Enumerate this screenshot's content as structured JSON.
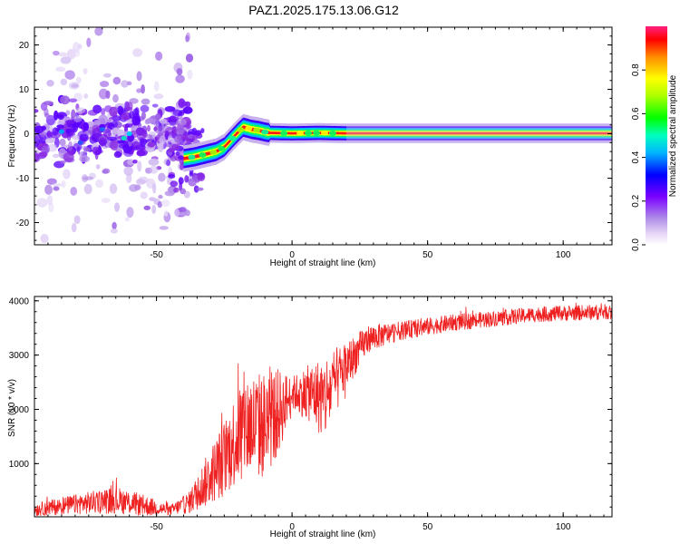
{
  "title": "PAZ1.2025.175.13.06.G12",
  "colors": {
    "snr_line": "#ee2020",
    "frame": "#000000",
    "spectrogram_cloud": "#8a2be2"
  },
  "chart_data": [
    {
      "type": "heatmap",
      "id": "spectrogram",
      "xlabel": "Height of straight line (km)",
      "ylabel": "Frequency (Hz)",
      "xlim": [
        -95,
        118
      ],
      "ylim": [
        -25,
        24
      ],
      "x_ticks": [
        -50,
        0,
        50,
        100
      ],
      "y_ticks": [
        -20,
        -10,
        0,
        10,
        20
      ],
      "colorbar": {
        "label": "Normalized spectral amplitude",
        "range": [
          0,
          1
        ],
        "ticks": [
          "0.0",
          "0.2",
          "0.4",
          "0.6",
          "0.8"
        ],
        "colormap": "rainbow"
      },
      "ridge": [
        {
          "x": -40,
          "y": -5.6
        },
        {
          "x": -36,
          "y": -5.2
        },
        {
          "x": -32,
          "y": -4.6
        },
        {
          "x": -28,
          "y": -4.0
        },
        {
          "x": -25,
          "y": -3.0
        },
        {
          "x": -22,
          "y": -1.0
        },
        {
          "x": -20,
          "y": 0.3
        },
        {
          "x": -18,
          "y": 1.5
        },
        {
          "x": -15,
          "y": 1.0
        },
        {
          "x": -12,
          "y": 0.7
        },
        {
          "x": -10,
          "y": 0.4
        },
        {
          "x": -8,
          "y": 0.2
        },
        {
          "x": 0,
          "y": 0.1
        },
        {
          "x": 10,
          "y": 0.2
        },
        {
          "x": 20,
          "y": 0.1
        },
        {
          "x": 118,
          "y": 0.1
        }
      ]
    },
    {
      "type": "line",
      "id": "snr",
      "xlabel": "Height of straight line (km)",
      "ylabel": "SNR (10 * v/v)",
      "xlim": [
        -95,
        118
      ],
      "ylim": [
        20,
        4080
      ],
      "x_ticks": [
        -50,
        0,
        50,
        100
      ],
      "y_ticks": [
        1000,
        2000,
        3000,
        4000
      ],
      "envelope": [
        {
          "x": -95,
          "mean": 150,
          "noise": 120
        },
        {
          "x": -80,
          "mean": 250,
          "noise": 180
        },
        {
          "x": -65,
          "mean": 330,
          "noise": 250
        },
        {
          "x": -55,
          "mean": 230,
          "noise": 200
        },
        {
          "x": -45,
          "mean": 140,
          "noise": 90
        },
        {
          "x": -38,
          "mean": 280,
          "noise": 200
        },
        {
          "x": -32,
          "mean": 650,
          "noise": 450
        },
        {
          "x": -25,
          "mean": 1100,
          "noise": 700
        },
        {
          "x": -18,
          "mean": 1700,
          "noise": 1000
        },
        {
          "x": -10,
          "mean": 1700,
          "noise": 1000
        },
        {
          "x": -5,
          "mean": 1950,
          "noise": 800
        },
        {
          "x": 0,
          "mean": 2300,
          "noise": 300
        },
        {
          "x": 7,
          "mean": 2300,
          "noise": 550
        },
        {
          "x": 12,
          "mean": 2200,
          "noise": 800
        },
        {
          "x": 20,
          "mean": 2800,
          "noise": 450
        },
        {
          "x": 28,
          "mean": 3300,
          "noise": 250
        },
        {
          "x": 40,
          "mean": 3450,
          "noise": 170
        },
        {
          "x": 60,
          "mean": 3600,
          "noise": 150
        },
        {
          "x": 90,
          "mean": 3750,
          "noise": 140
        },
        {
          "x": 118,
          "mean": 3800,
          "noise": 140
        }
      ]
    }
  ]
}
